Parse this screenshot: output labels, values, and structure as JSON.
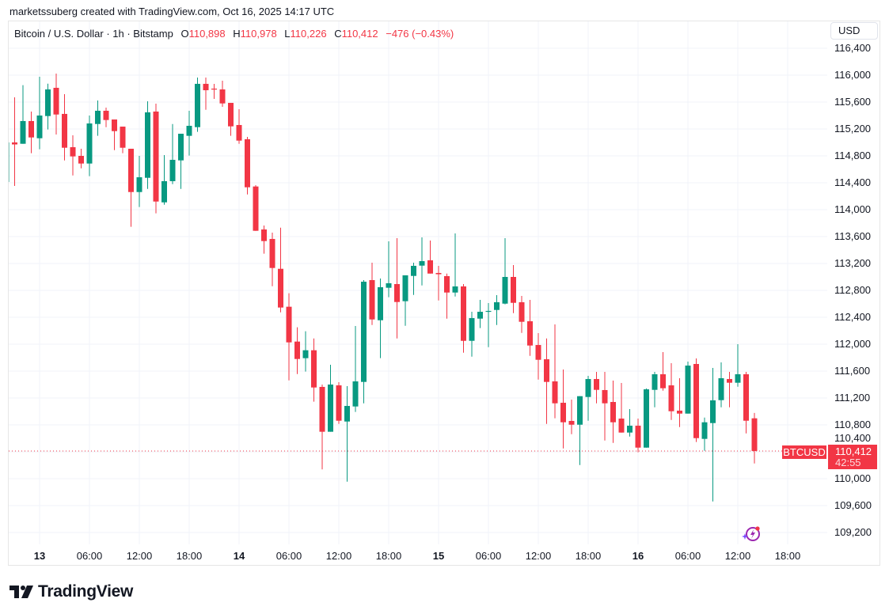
{
  "attribution": "marketssuberg created with TradingView.com, Oct 16, 2025 14:17 UTC",
  "legend": {
    "symbol": "Bitcoin / U.S. Dollar · 1h · Bitstamp",
    "o_label": "O",
    "o": "110,898",
    "h_label": "H",
    "h": "110,978",
    "l_label": "L",
    "l": "110,226",
    "c_label": "C",
    "c": "110,412",
    "change": "−476 (−0.43%)"
  },
  "currency_button": "USD",
  "symbol_tag": "BTCUSD",
  "price_tag": {
    "price": "110,412",
    "countdown": "42:55"
  },
  "brand": "TradingView",
  "colors": {
    "up": "#089981",
    "down": "#F23645",
    "grid": "#f0f3fa"
  },
  "chart_data": {
    "type": "candlestick",
    "interval": "1h",
    "grid": true,
    "y_scale_position": "right",
    "ylim": [
      109000,
      116450
    ],
    "y_ticks": [
      "116,400",
      "116,000",
      "115,600",
      "115,200",
      "114,800",
      "114,400",
      "114,000",
      "113,600",
      "113,200",
      "112,800",
      "112,400",
      "112,000",
      "111,600",
      "111,200",
      "110,800",
      "110,400",
      "110,000",
      "109,600",
      "109,200"
    ],
    "y_tick_values": [
      116400,
      116000,
      115600,
      115200,
      114800,
      114400,
      114000,
      113600,
      113200,
      112800,
      112400,
      112000,
      111600,
      111200,
      110800,
      110400,
      110000,
      109600,
      109200
    ],
    "x_ticks": [
      {
        "label": "13",
        "t": "2025-10-13 00:00",
        "bold": true
      },
      {
        "label": "06:00",
        "t": "2025-10-13 06:00"
      },
      {
        "label": "12:00",
        "t": "2025-10-13 12:00"
      },
      {
        "label": "18:00",
        "t": "2025-10-13 18:00"
      },
      {
        "label": "14",
        "t": "2025-10-14 00:00",
        "bold": true
      },
      {
        "label": "06:00",
        "t": "2025-10-14 06:00"
      },
      {
        "label": "12:00",
        "t": "2025-10-14 12:00"
      },
      {
        "label": "18:00",
        "t": "2025-10-14 18:00"
      },
      {
        "label": "15",
        "t": "2025-10-15 00:00",
        "bold": true
      },
      {
        "label": "06:00",
        "t": "2025-10-15 06:00"
      },
      {
        "label": "12:00",
        "t": "2025-10-15 12:00"
      },
      {
        "label": "18:00",
        "t": "2025-10-15 18:00"
      },
      {
        "label": "16",
        "t": "2025-10-16 00:00",
        "bold": true
      },
      {
        "label": "06:00",
        "t": "2025-10-16 06:00"
      },
      {
        "label": "12:00",
        "t": "2025-10-16 12:00"
      },
      {
        "label": "18:00",
        "t": "2025-10-16 18:00"
      }
    ],
    "last_price": 110412,
    "candles_fields": [
      "time",
      "open",
      "high",
      "low",
      "close"
    ],
    "candles": [
      [
        "2025-10-12 20:00",
        114412,
        115000,
        114412,
        115000
      ],
      [
        "2025-10-12 21:00",
        115000,
        115671,
        114353,
        114970
      ],
      [
        "2025-10-12 22:00",
        114980,
        115851,
        114980,
        115318
      ],
      [
        "2025-10-12 23:00",
        115318,
        115459,
        114839,
        115074
      ],
      [
        "2025-10-13 00:00",
        115062,
        115976,
        114898,
        115400
      ],
      [
        "2025-10-13 01:00",
        115392,
        115874,
        115192,
        115788
      ],
      [
        "2025-10-13 02:00",
        115812,
        116024,
        115118,
        115415
      ],
      [
        "2025-10-13 03:00",
        115424,
        115718,
        114733,
        114921
      ],
      [
        "2025-10-13 04:00",
        114929,
        115106,
        114509,
        114792
      ],
      [
        "2025-10-13 05:00",
        114800,
        114906,
        114615,
        114686
      ],
      [
        "2025-10-13 06:00",
        114686,
        115400,
        114498,
        115282
      ],
      [
        "2025-10-13 07:00",
        115274,
        115624,
        115098,
        115471
      ],
      [
        "2025-10-13 08:00",
        115471,
        115518,
        115227,
        115333
      ],
      [
        "2025-10-13 09:00",
        115341,
        115341,
        114886,
        115168
      ],
      [
        "2025-10-13 10:00",
        115235,
        115235,
        114839,
        114921
      ],
      [
        "2025-10-13 11:00",
        114906,
        114906,
        113745,
        114262
      ],
      [
        "2025-10-13 12:00",
        114262,
        114800,
        114039,
        114482
      ],
      [
        "2025-10-13 13:00",
        114474,
        115612,
        114309,
        115447
      ],
      [
        "2025-10-13 14:00",
        115459,
        115576,
        113945,
        114121
      ],
      [
        "2025-10-13 15:00",
        114109,
        114812,
        114074,
        114424
      ],
      [
        "2025-10-13 16:00",
        114424,
        115274,
        114380,
        114741
      ],
      [
        "2025-10-13 17:00",
        114733,
        115129,
        114309,
        115129
      ],
      [
        "2025-10-13 18:00",
        115098,
        115471,
        114804,
        115247
      ],
      [
        "2025-10-13 19:00",
        115227,
        115965,
        115157,
        115871
      ],
      [
        "2025-10-13 20:00",
        115871,
        115965,
        115486,
        115776
      ],
      [
        "2025-10-13 21:00",
        115800,
        115871,
        115647,
        115790
      ],
      [
        "2025-10-13 22:00",
        115788,
        115918,
        115529,
        115580
      ],
      [
        "2025-10-13 23:00",
        115588,
        115588,
        115098,
        115239
      ],
      [
        "2025-10-14 00:00",
        115259,
        115494,
        114980,
        115027
      ],
      [
        "2025-10-14 01:00",
        115047,
        115082,
        114227,
        114333
      ],
      [
        "2025-10-14 02:00",
        114345,
        114365,
        113686,
        113686
      ],
      [
        "2025-10-14 03:00",
        113706,
        113765,
        113345,
        113533
      ],
      [
        "2025-10-14 04:00",
        113565,
        113659,
        112862,
        113133
      ],
      [
        "2025-10-14 05:00",
        113121,
        113733,
        112474,
        112545
      ],
      [
        "2025-10-14 06:00",
        112557,
        112757,
        111462,
        112027
      ],
      [
        "2025-10-14 07:00",
        112039,
        112251,
        111556,
        111780
      ],
      [
        "2025-10-14 08:00",
        111792,
        112192,
        111592,
        111910
      ],
      [
        "2025-10-14 09:00",
        111910,
        112086,
        111145,
        111356
      ],
      [
        "2025-10-14 10:00",
        111365,
        111400,
        110138,
        110698
      ],
      [
        "2025-10-14 11:00",
        110698,
        111694,
        110698,
        111400
      ],
      [
        "2025-10-14 12:00",
        111388,
        111435,
        110815,
        110862
      ],
      [
        "2025-10-14 13:00",
        110850,
        111376,
        109956,
        111082
      ],
      [
        "2025-10-14 14:00",
        111074,
        112271,
        110992,
        111447
      ],
      [
        "2025-10-14 15:00",
        111439,
        112953,
        111121,
        112929
      ],
      [
        "2025-10-14 16:00",
        112953,
        113212,
        112286,
        112368
      ],
      [
        "2025-10-14 17:00",
        112356,
        112976,
        111792,
        112847
      ],
      [
        "2025-10-14 18:00",
        112839,
        113529,
        112698,
        112906
      ],
      [
        "2025-10-14 19:00",
        112894,
        113576,
        112086,
        112627
      ],
      [
        "2025-10-14 20:00",
        112639,
        113024,
        112274,
        113024
      ],
      [
        "2025-10-14 21:00",
        113015,
        113212,
        112733,
        113165
      ],
      [
        "2025-10-14 22:00",
        113168,
        113588,
        112874,
        113235
      ],
      [
        "2025-10-14 23:00",
        113247,
        113541,
        113050,
        113050
      ],
      [
        "2025-10-15 00:00",
        113059,
        113165,
        112650,
        113040
      ],
      [
        "2025-10-15 01:00",
        113012,
        113050,
        112380,
        112768
      ],
      [
        "2025-10-15 02:00",
        112768,
        113647,
        112709,
        112859
      ],
      [
        "2025-10-15 03:00",
        112859,
        112894,
        111874,
        112050
      ],
      [
        "2025-10-15 04:00",
        112050,
        112482,
        111815,
        112388
      ],
      [
        "2025-10-15 05:00",
        112380,
        112659,
        112239,
        112482
      ],
      [
        "2025-10-15 06:00",
        112488,
        112612,
        111956,
        112495
      ],
      [
        "2025-10-15 07:00",
        112509,
        112729,
        112286,
        112624
      ],
      [
        "2025-10-15 08:00",
        112603,
        113576,
        112592,
        113000
      ],
      [
        "2025-10-15 09:00",
        113000,
        113176,
        112462,
        112615
      ],
      [
        "2025-10-15 10:00",
        112624,
        112718,
        112168,
        112333
      ],
      [
        "2025-10-15 11:00",
        112341,
        112659,
        111827,
        111980
      ],
      [
        "2025-10-15 12:00",
        111988,
        112165,
        111474,
        111768
      ],
      [
        "2025-10-15 13:00",
        111776,
        112086,
        110815,
        111439
      ],
      [
        "2025-10-15 14:00",
        111447,
        112294,
        110898,
        111121
      ],
      [
        "2025-10-15 15:00",
        111129,
        111623,
        110450,
        110839
      ],
      [
        "2025-10-15 16:00",
        110859,
        111176,
        110662,
        110803
      ],
      [
        "2025-10-15 17:00",
        110803,
        111227,
        110203,
        111227
      ],
      [
        "2025-10-15 18:00",
        111215,
        111529,
        110862,
        111482
      ],
      [
        "2025-10-15 19:00",
        111482,
        111588,
        111121,
        111321
      ],
      [
        "2025-10-15 20:00",
        111318,
        111588,
        110568,
        111121
      ],
      [
        "2025-10-15 21:00",
        111141,
        111459,
        110533,
        110839
      ],
      [
        "2025-10-15 22:00",
        110894,
        111424,
        110686,
        110686
      ],
      [
        "2025-10-15 23:00",
        110686,
        111035,
        110627,
        110788
      ],
      [
        "2025-10-16 00:00",
        110788,
        110894,
        110392,
        110462
      ],
      [
        "2025-10-16 01:00",
        110462,
        111341,
        110462,
        111329
      ],
      [
        "2025-10-16 02:00",
        111321,
        111588,
        111062,
        111553
      ],
      [
        "2025-10-16 03:00",
        111553,
        111882,
        111309,
        111345
      ],
      [
        "2025-10-16 04:00",
        111388,
        111718,
        110874,
        111003
      ],
      [
        "2025-10-16 05:00",
        111012,
        111494,
        110768,
        110968
      ],
      [
        "2025-10-16 06:00",
        110968,
        111741,
        110968,
        111682
      ],
      [
        "2025-10-16 07:00",
        111706,
        111788,
        110545,
        110603
      ],
      [
        "2025-10-16 08:00",
        110592,
        110909,
        110415,
        110839
      ],
      [
        "2025-10-16 09:00",
        110827,
        111647,
        109662,
        111165
      ],
      [
        "2025-10-16 10:00",
        111168,
        111729,
        111062,
        111494
      ],
      [
        "2025-10-16 11:00",
        111482,
        111588,
        111062,
        111427
      ],
      [
        "2025-10-16 12:00",
        111427,
        112000,
        111368,
        111553
      ],
      [
        "2025-10-16 13:00",
        111553,
        111588,
        110674,
        110862
      ],
      [
        "2025-10-16 14:00",
        110898,
        110978,
        110226,
        110412
      ]
    ]
  }
}
